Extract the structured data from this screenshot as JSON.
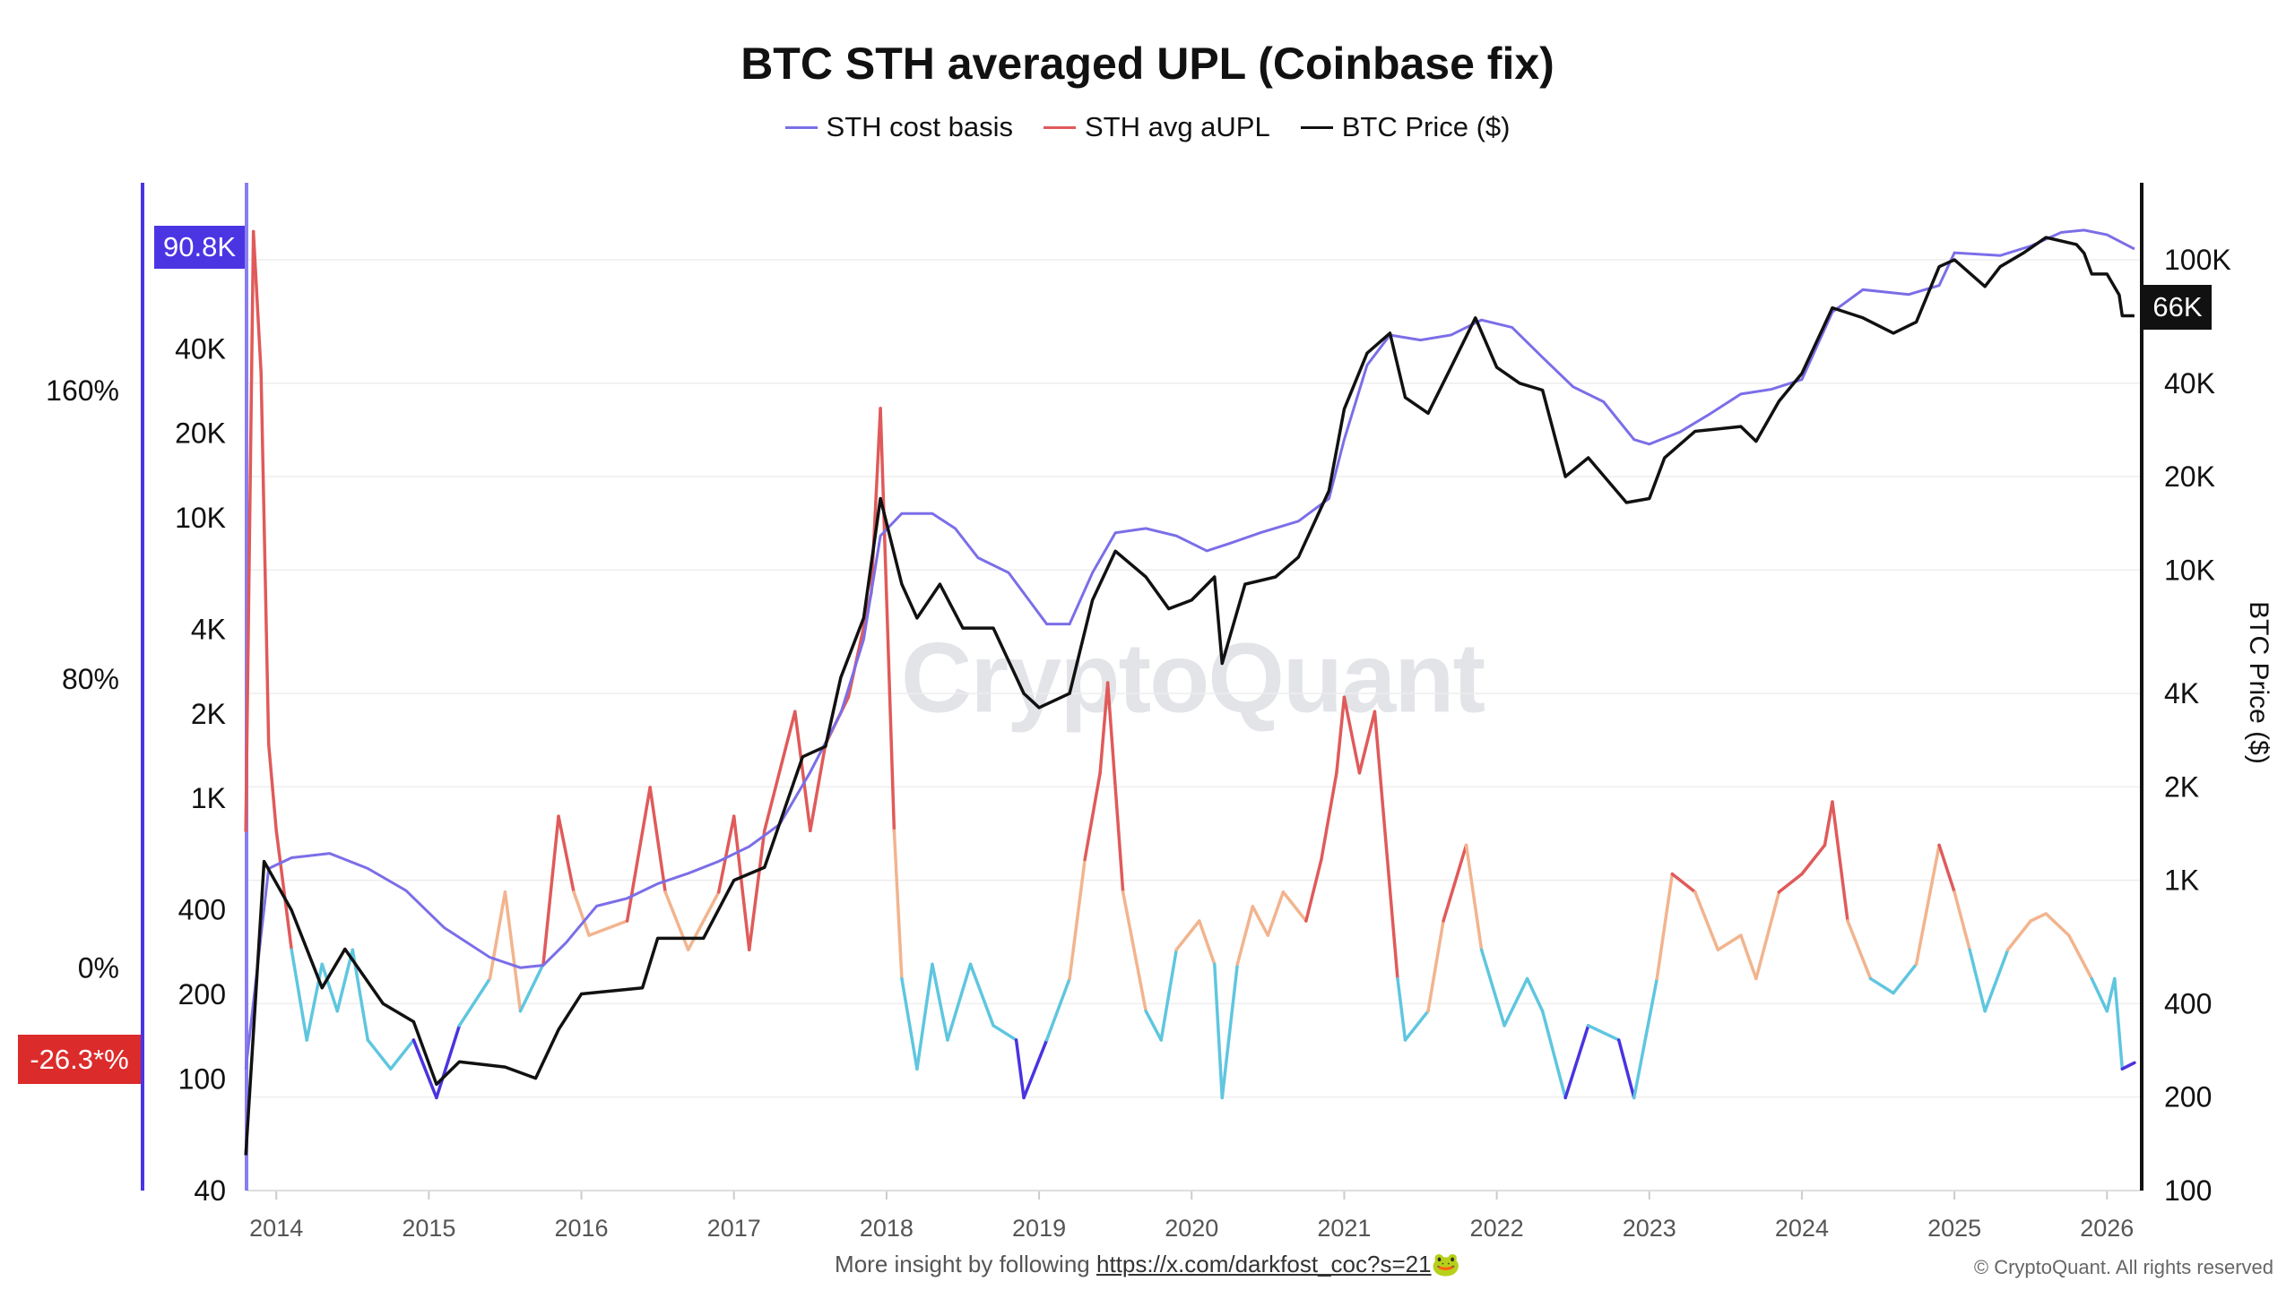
{
  "chart_data": {
    "type": "line",
    "title": "BTC STH averaged UPL (Coinbase fix)",
    "legend": {
      "placement": "top-center",
      "entries": [
        {
          "name": "STH cost basis",
          "color": "#7b6ee8"
        },
        {
          "name": "STH avg aUPL",
          "color": "#e05a5a"
        },
        {
          "name": "BTC Price ($)",
          "color": "#111111"
        }
      ]
    },
    "y_right_label": "BTC Price ($)",
    "x_ticks": [
      "2014",
      "2015",
      "2016",
      "2017",
      "2018",
      "2019",
      "2020",
      "2021",
      "2022",
      "2023",
      "2024",
      "2025",
      "2026"
    ],
    "y_left_pct_ticks": [
      "160%",
      "80%",
      "0%"
    ],
    "y_left_cost_ticks": [
      "40K",
      "20K",
      "10K",
      "4K",
      "2K",
      "1K",
      "400",
      "200",
      "100",
      "40"
    ],
    "y_right_price_ticks": [
      "100K",
      "40K",
      "20K",
      "10K",
      "4K",
      "2K",
      "1K",
      "400",
      "200",
      "100"
    ],
    "scales": {
      "price": "log",
      "cost_basis": "log",
      "aupl": "linear"
    },
    "grid": true,
    "aupl_color_bands": [
      {
        "range": "> 20%",
        "color": "#e05a5a"
      },
      {
        "range": "0% to 20%",
        "color": "#f2b48e"
      },
      {
        "range": "-25% to 0%",
        "color": "#5fc6df"
      },
      {
        "range": "< -25%",
        "color": "#4a33e0"
      }
    ],
    "badges": {
      "cost_basis_last": "90.8K",
      "aupl_last": "-26.3*%",
      "price_last": "66K"
    },
    "series": [
      {
        "name": "BTC Price ($)",
        "axis": "right",
        "x": [
          2013.8,
          2013.92,
          2014.1,
          2014.3,
          2014.45,
          2014.7,
          2014.9,
          2015.05,
          2015.2,
          2015.5,
          2015.7,
          2015.85,
          2016.0,
          2016.4,
          2016.5,
          2016.8,
          2017.0,
          2017.2,
          2017.45,
          2017.6,
          2017.7,
          2017.85,
          2017.96,
          2018.1,
          2018.2,
          2018.35,
          2018.5,
          2018.7,
          2018.9,
          2019.0,
          2019.2,
          2019.35,
          2019.5,
          2019.7,
          2019.85,
          2020.0,
          2020.15,
          2020.2,
          2020.35,
          2020.55,
          2020.7,
          2020.9,
          2021.0,
          2021.15,
          2021.3,
          2021.4,
          2021.55,
          2021.7,
          2021.86,
          2022.0,
          2022.15,
          2022.3,
          2022.45,
          2022.6,
          2022.85,
          2023.0,
          2023.1,
          2023.3,
          2023.6,
          2023.7,
          2023.85,
          2024.0,
          2024.2,
          2024.4,
          2024.6,
          2024.75,
          2024.9,
          2025.0,
          2025.2,
          2025.3,
          2025.45,
          2025.6,
          2025.8,
          2025.85,
          2025.9,
          2026.0,
          2026.08,
          2026.1,
          2026.18
        ],
        "values": [
          130,
          1150,
          800,
          450,
          600,
          400,
          350,
          220,
          260,
          250,
          230,
          330,
          430,
          450,
          650,
          650,
          1000,
          1100,
          2500,
          2700,
          4500,
          7000,
          17000,
          9000,
          7000,
          9000,
          6500,
          6500,
          4000,
          3600,
          4000,
          8000,
          11500,
          9500,
          7500,
          8000,
          9500,
          5000,
          9000,
          9500,
          11000,
          18000,
          33000,
          50000,
          58000,
          36000,
          32000,
          45000,
          65000,
          45000,
          40000,
          38000,
          20000,
          23000,
          16500,
          17000,
          23000,
          28000,
          29000,
          26000,
          35000,
          43000,
          70000,
          65000,
          58000,
          63000,
          95000,
          100000,
          82000,
          95000,
          105000,
          118000,
          112000,
          105000,
          90000,
          90000,
          77000,
          66000,
          66000
        ]
      },
      {
        "name": "STH cost basis",
        "axis": "left-cost",
        "x": [
          2013.8,
          2013.95,
          2014.1,
          2014.35,
          2014.6,
          2014.85,
          2015.1,
          2015.4,
          2015.6,
          2015.75,
          2015.9,
          2016.1,
          2016.3,
          2016.5,
          2016.7,
          2016.9,
          2017.1,
          2017.3,
          2017.5,
          2017.7,
          2017.85,
          2017.96,
          2018.1,
          2018.3,
          2018.45,
          2018.6,
          2018.8,
          2019.05,
          2019.2,
          2019.35,
          2019.5,
          2019.7,
          2019.9,
          2020.1,
          2020.25,
          2020.45,
          2020.7,
          2020.9,
          2021.0,
          2021.15,
          2021.3,
          2021.5,
          2021.7,
          2021.9,
          2022.1,
          2022.3,
          2022.5,
          2022.7,
          2022.9,
          2023.0,
          2023.2,
          2023.4,
          2023.6,
          2023.8,
          2024.0,
          2024.2,
          2024.4,
          2024.7,
          2024.9,
          2025.0,
          2025.3,
          2025.5,
          2025.7,
          2025.85,
          2026.0,
          2026.18
        ],
        "values": [
          108,
          562,
          614,
          636,
          562,
          469,
          346,
          271,
          249,
          254,
          306,
          413,
          440,
          496,
          540,
          596,
          673,
          808,
          1240,
          2010,
          3680,
          8620,
          10350,
          10350,
          9160,
          7200,
          6370,
          4180,
          4180,
          6370,
          8840,
          9160,
          8620,
          7620,
          8100,
          8840,
          9720,
          11700,
          19000,
          35000,
          44800,
          43000,
          44800,
          50700,
          47700,
          37300,
          29300,
          25900,
          19000,
          18300,
          20200,
          23500,
          27600,
          28700,
          31100,
          54100,
          65000,
          62500,
          67300,
          88000,
          86000,
          93000,
          104000,
          106000,
          102000,
          90800
        ]
      },
      {
        "name": "STH avg aUPL",
        "axis": "left-pct",
        "unit": "%",
        "x": [
          2013.8,
          2013.85,
          2013.9,
          2013.95,
          2014.0,
          2014.1,
          2014.2,
          2014.3,
          2014.4,
          2014.5,
          2014.6,
          2014.75,
          2014.9,
          2015.05,
          2015.2,
          2015.4,
          2015.5,
          2015.6,
          2015.75,
          2015.85,
          2015.95,
          2016.05,
          2016.3,
          2016.45,
          2016.55,
          2016.7,
          2016.9,
          2017.0,
          2017.1,
          2017.2,
          2017.4,
          2017.5,
          2017.6,
          2017.75,
          2017.9,
          2017.96,
          2018.05,
          2018.1,
          2018.2,
          2018.3,
          2018.4,
          2018.55,
          2018.7,
          2018.85,
          2018.9,
          2019.05,
          2019.2,
          2019.3,
          2019.4,
          2019.45,
          2019.55,
          2019.7,
          2019.8,
          2019.9,
          2020.05,
          2020.15,
          2020.2,
          2020.3,
          2020.4,
          2020.5,
          2020.6,
          2020.75,
          2020.85,
          2020.95,
          2021.0,
          2021.1,
          2021.2,
          2021.35,
          2021.4,
          2021.55,
          2021.65,
          2021.8,
          2021.9,
          2022.05,
          2022.2,
          2022.3,
          2022.45,
          2022.6,
          2022.8,
          2022.9,
          2023.05,
          2023.15,
          2023.3,
          2023.45,
          2023.6,
          2023.7,
          2023.85,
          2024.0,
          2024.15,
          2024.2,
          2024.3,
          2024.45,
          2024.6,
          2024.75,
          2024.9,
          2025.0,
          2025.1,
          2025.2,
          2025.35,
          2025.5,
          2025.6,
          2025.75,
          2025.9,
          2026.0,
          2026.05,
          2026.1,
          2026.18
        ],
        "values": [
          38,
          204,
          165,
          62,
          38,
          5,
          -20,
          1,
          -12,
          5,
          -20,
          -28,
          -20,
          -36,
          -16,
          -3,
          21,
          -12,
          1,
          42,
          21,
          9,
          13,
          50,
          21,
          5,
          21,
          42,
          5,
          38,
          71,
          38,
          62,
          75,
          104,
          155,
          38,
          -3,
          -28,
          1,
          -20,
          1,
          -16,
          -20,
          -36,
          -20,
          -3,
          30,
          54,
          79,
          21,
          -12,
          -20,
          5,
          13,
          1,
          -36,
          1,
          17,
          9,
          21,
          13,
          30,
          54,
          75,
          54,
          71,
          -3,
          -20,
          -12,
          13,
          34,
          5,
          -16,
          -3,
          -12,
          -36,
          -16,
          -20,
          -36,
          -3,
          26,
          21,
          5,
          9,
          -3,
          21,
          26,
          34,
          46,
          13,
          -3,
          -7,
          1,
          34,
          21,
          5,
          -12,
          5,
          13,
          15,
          9,
          -3,
          -12,
          -3,
          -28,
          -26.3
        ]
      }
    ]
  },
  "watermark": "CryptoQuant",
  "footer": {
    "prefix": "More insight by following",
    "link": "https://x.com/darkfost_coc?s=21",
    "emoji": "🐸",
    "copyright": "© CryptoQuant. All rights reserved"
  }
}
